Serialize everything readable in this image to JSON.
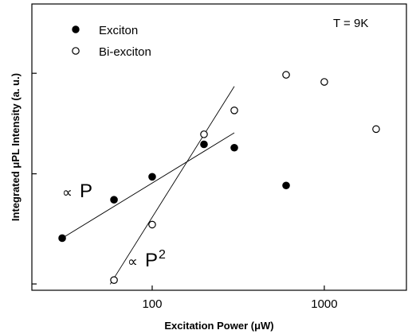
{
  "chart_data": {
    "type": "scatter",
    "xlabel": "Excitation Power (μW)",
    "ylabel": "Integrated μPL Intensity (a. u.)",
    "x_scale": "log",
    "y_scale": "log",
    "xlim": [
      20,
      3000
    ],
    "ylim": [
      0.28,
      6.4
    ],
    "x_ticks": [
      100,
      1000
    ],
    "x_tick_labels": [
      "100",
      "1000"
    ],
    "y_ticks": [
      0.3,
      1,
      3
    ],
    "y_tick_labels": [],
    "annotation_temperature": "T = 9K",
    "series": [
      {
        "name": "Exciton",
        "marker": "filled-circle",
        "x": [
          30,
          60,
          100,
          200,
          300,
          600
        ],
        "y": [
          0.495,
          0.753,
          0.968,
          1.38,
          1.33,
          0.88
        ]
      },
      {
        "name": "Bi-exciton",
        "marker": "open-circle",
        "x": [
          60,
          100,
          200,
          300,
          600,
          1000,
          2000
        ],
        "y": [
          0.313,
          0.574,
          1.54,
          2.0,
          2.95,
          2.73,
          1.63
        ]
      }
    ],
    "fit_lines": [
      {
        "label": "∝ P",
        "x": [
          30,
          300
        ],
        "y": [
          0.495,
          1.565
        ]
      },
      {
        "label": "∝ P²",
        "x": [
          57,
          300
        ],
        "y": [
          0.299,
          2.6
        ]
      }
    ]
  },
  "annotations": {
    "linear_label_prefix": "∝",
    "linear_label_var": "P",
    "quadratic_label_prefix": "∝",
    "quadratic_label_var": "P",
    "quadratic_label_exp": "2"
  }
}
